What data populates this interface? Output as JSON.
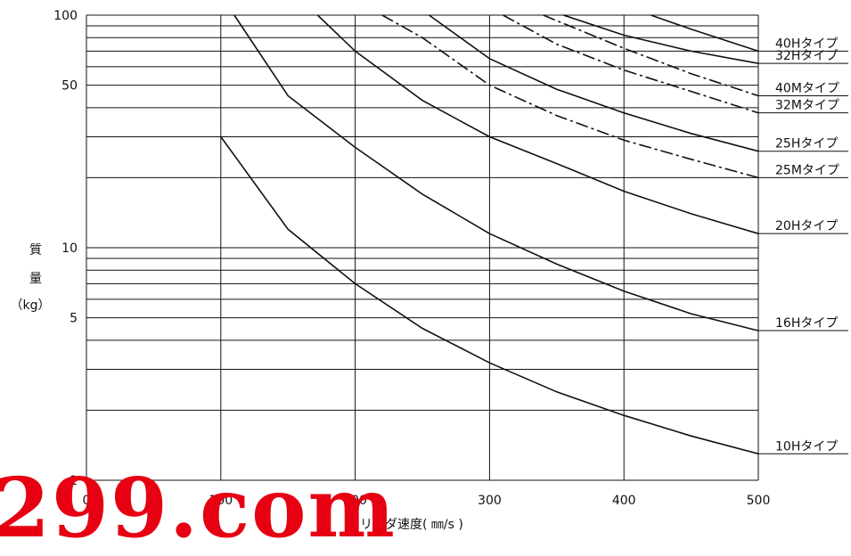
{
  "watermark": "299.com",
  "chart_data": {
    "type": "line",
    "xlabel": "シリンダ速度( ㎜/s )",
    "ylabel_lines": [
      "質",
      "量",
      "（kg）"
    ],
    "x_ticks": [
      "0",
      "100",
      "200",
      "300",
      "400",
      "500"
    ],
    "y_ticks": [
      "1",
      "5",
      "10",
      "50",
      "100"
    ],
    "xlim": [
      0,
      500
    ],
    "ylim": [
      1,
      100
    ],
    "y_scale": "log",
    "grid": true,
    "series": [
      {
        "name": "10Hタイプ",
        "style": "solid",
        "x": [
          100,
          150,
          200,
          250,
          300,
          350,
          400,
          450,
          500
        ],
        "y": [
          30,
          12,
          7,
          4.5,
          3.2,
          2.4,
          1.9,
          1.55,
          1.3
        ]
      },
      {
        "name": "16Hタイプ",
        "style": "solid",
        "x": [
          110,
          150,
          200,
          250,
          300,
          350,
          400,
          450,
          500
        ],
        "y": [
          100,
          45,
          27,
          17,
          11.5,
          8.5,
          6.5,
          5.2,
          4.4
        ]
      },
      {
        "name": "20Hタイプ",
        "style": "solid",
        "x": [
          172,
          200,
          250,
          300,
          350,
          400,
          450,
          500
        ],
        "y": [
          100,
          70,
          43,
          30,
          23,
          17.5,
          14,
          11.5
        ]
      },
      {
        "name": "25Mタイプ",
        "style": "dashdot",
        "x": [
          220,
          250,
          300,
          350,
          400,
          450,
          500
        ],
        "y": [
          100,
          80,
          50,
          37,
          29,
          24,
          20
        ]
      },
      {
        "name": "25Hタイプ",
        "style": "solid",
        "x": [
          255,
          300,
          350,
          400,
          450,
          500
        ],
        "y": [
          100,
          65,
          48,
          38,
          31,
          26
        ]
      },
      {
        "name": "32Mタイプ",
        "style": "dashdot",
        "x": [
          310,
          350,
          400,
          450,
          500
        ],
        "y": [
          100,
          75,
          58,
          47,
          38
        ]
      },
      {
        "name": "32Hタイプ",
        "style": "solid",
        "x": [
          355,
          400,
          450,
          500
        ],
        "y": [
          100,
          82,
          70,
          62
        ]
      },
      {
        "name": "40Mタイプ",
        "style": "dashdot",
        "x": [
          340,
          400,
          450,
          500
        ],
        "y": [
          100,
          72,
          56,
          45
        ]
      },
      {
        "name": "40Hタイプ",
        "style": "solid",
        "x": [
          420,
          450,
          500
        ],
        "y": [
          100,
          87,
          70
        ]
      }
    ]
  }
}
